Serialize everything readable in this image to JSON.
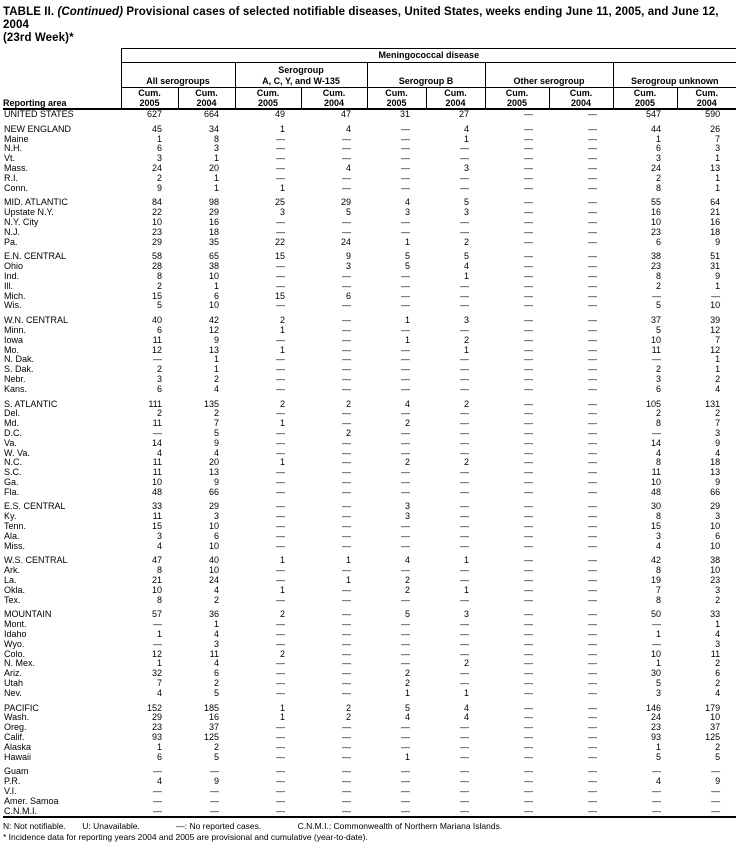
{
  "title": {
    "line1_pre": "TABLE II. ",
    "line1_italic": "(Continued)",
    "line1_post": " Provisional cases of selected notifiable diseases, United States, weeks ending June 11, 2005, and June 12, 2004",
    "line2": "(23rd Week)*"
  },
  "header": {
    "reporting_area": "Reporting area",
    "disease": "Meningococcal disease",
    "groups": [
      {
        "line1": "",
        "line2": "All serogroups"
      },
      {
        "line1": "Serogroup",
        "line2": "A, C, Y, and W-135"
      },
      {
        "line1": "",
        "line2": "Serogroup B"
      },
      {
        "line1": "",
        "line2": "Other serogroup"
      },
      {
        "line1": "",
        "line2": "Serogroup unknown"
      }
    ],
    "sub_label": "Cum.",
    "years": [
      "2005",
      "2004"
    ]
  },
  "table": {
    "sections": [
      {
        "rows": [
          [
            "UNITED STATES",
            "627",
            "664",
            "49",
            "47",
            "31",
            "27",
            "—",
            "—",
            "547",
            "590"
          ]
        ]
      },
      {
        "rows": [
          [
            "NEW ENGLAND",
            "45",
            "34",
            "1",
            "4",
            "—",
            "4",
            "—",
            "—",
            "44",
            "26"
          ],
          [
            "Maine",
            "1",
            "8",
            "—",
            "—",
            "—",
            "1",
            "—",
            "—",
            "1",
            "7"
          ],
          [
            "N.H.",
            "6",
            "3",
            "—",
            "—",
            "—",
            "—",
            "—",
            "—",
            "6",
            "3"
          ],
          [
            "Vt.",
            "3",
            "1",
            "—",
            "—",
            "—",
            "—",
            "—",
            "—",
            "3",
            "1"
          ],
          [
            "Mass.",
            "24",
            "20",
            "—",
            "4",
            "—",
            "3",
            "—",
            "—",
            "24",
            "13"
          ],
          [
            "R.I.",
            "2",
            "1",
            "—",
            "—",
            "—",
            "—",
            "—",
            "—",
            "2",
            "1"
          ],
          [
            "Conn.",
            "9",
            "1",
            "1",
            "—",
            "—",
            "—",
            "—",
            "—",
            "8",
            "1"
          ]
        ]
      },
      {
        "rows": [
          [
            "MID. ATLANTIC",
            "84",
            "98",
            "25",
            "29",
            "4",
            "5",
            "—",
            "—",
            "55",
            "64"
          ],
          [
            "Upstate N.Y.",
            "22",
            "29",
            "3",
            "5",
            "3",
            "3",
            "—",
            "—",
            "16",
            "21"
          ],
          [
            "N.Y. City",
            "10",
            "16",
            "—",
            "—",
            "—",
            "—",
            "—",
            "—",
            "10",
            "16"
          ],
          [
            "N.J.",
            "23",
            "18",
            "—",
            "—",
            "—",
            "—",
            "—",
            "—",
            "23",
            "18"
          ],
          [
            "Pa.",
            "29",
            "35",
            "22",
            "24",
            "1",
            "2",
            "—",
            "—",
            "6",
            "9"
          ]
        ]
      },
      {
        "rows": [
          [
            "E.N. CENTRAL",
            "58",
            "65",
            "15",
            "9",
            "5",
            "5",
            "—",
            "—",
            "38",
            "51"
          ],
          [
            "Ohio",
            "28",
            "38",
            "—",
            "3",
            "5",
            "4",
            "—",
            "—",
            "23",
            "31"
          ],
          [
            "Ind.",
            "8",
            "10",
            "—",
            "—",
            "—",
            "1",
            "—",
            "—",
            "8",
            "9"
          ],
          [
            "Ill.",
            "2",
            "1",
            "—",
            "—",
            "—",
            "—",
            "—",
            "—",
            "2",
            "1"
          ],
          [
            "Mich.",
            "15",
            "6",
            "15",
            "6",
            "—",
            "—",
            "—",
            "—",
            "—",
            "—"
          ],
          [
            "Wis.",
            "5",
            "10",
            "—",
            "—",
            "—",
            "—",
            "—",
            "—",
            "5",
            "10"
          ]
        ]
      },
      {
        "rows": [
          [
            "W.N. CENTRAL",
            "40",
            "42",
            "2",
            "—",
            "1",
            "3",
            "—",
            "—",
            "37",
            "39"
          ],
          [
            "Minn.",
            "6",
            "12",
            "1",
            "—",
            "—",
            "—",
            "—",
            "—",
            "5",
            "12"
          ],
          [
            "Iowa",
            "11",
            "9",
            "—",
            "—",
            "1",
            "2",
            "—",
            "—",
            "10",
            "7"
          ],
          [
            "Mo.",
            "12",
            "13",
            "1",
            "—",
            "—",
            "1",
            "—",
            "—",
            "11",
            "12"
          ],
          [
            "N. Dak.",
            "—",
            "1",
            "—",
            "—",
            "—",
            "—",
            "—",
            "—",
            "—",
            "1"
          ],
          [
            "S. Dak.",
            "2",
            "1",
            "—",
            "—",
            "—",
            "—",
            "—",
            "—",
            "2",
            "1"
          ],
          [
            "Nebr.",
            "3",
            "2",
            "—",
            "—",
            "—",
            "—",
            "—",
            "—",
            "3",
            "2"
          ],
          [
            "Kans.",
            "6",
            "4",
            "—",
            "—",
            "—",
            "—",
            "—",
            "—",
            "6",
            "4"
          ]
        ]
      },
      {
        "rows": [
          [
            "S. ATLANTIC",
            "111",
            "135",
            "2",
            "2",
            "4",
            "2",
            "—",
            "—",
            "105",
            "131"
          ],
          [
            "Del.",
            "2",
            "2",
            "—",
            "—",
            "—",
            "—",
            "—",
            "—",
            "2",
            "2"
          ],
          [
            "Md.",
            "11",
            "7",
            "1",
            "—",
            "2",
            "—",
            "—",
            "—",
            "8",
            "7"
          ],
          [
            "D.C.",
            "—",
            "5",
            "—",
            "2",
            "—",
            "—",
            "—",
            "—",
            "—",
            "3"
          ],
          [
            "Va.",
            "14",
            "9",
            "—",
            "—",
            "—",
            "—",
            "—",
            "—",
            "14",
            "9"
          ],
          [
            "W. Va.",
            "4",
            "4",
            "—",
            "—",
            "—",
            "—",
            "—",
            "—",
            "4",
            "4"
          ],
          [
            "N.C.",
            "11",
            "20",
            "1",
            "—",
            "2",
            "2",
            "—",
            "—",
            "8",
            "18"
          ],
          [
            "S.C.",
            "11",
            "13",
            "—",
            "—",
            "—",
            "—",
            "—",
            "—",
            "11",
            "13"
          ],
          [
            "Ga.",
            "10",
            "9",
            "—",
            "—",
            "—",
            "—",
            "—",
            "—",
            "10",
            "9"
          ],
          [
            "Fla.",
            "48",
            "66",
            "—",
            "—",
            "—",
            "—",
            "—",
            "—",
            "48",
            "66"
          ]
        ]
      },
      {
        "rows": [
          [
            "E.S. CENTRAL",
            "33",
            "29",
            "—",
            "—",
            "3",
            "—",
            "—",
            "—",
            "30",
            "29"
          ],
          [
            "Ky.",
            "11",
            "3",
            "—",
            "—",
            "3",
            "—",
            "—",
            "—",
            "8",
            "3"
          ],
          [
            "Tenn.",
            "15",
            "10",
            "—",
            "—",
            "—",
            "—",
            "—",
            "—",
            "15",
            "10"
          ],
          [
            "Ala.",
            "3",
            "6",
            "—",
            "—",
            "—",
            "—",
            "—",
            "—",
            "3",
            "6"
          ],
          [
            "Miss.",
            "4",
            "10",
            "—",
            "—",
            "—",
            "—",
            "—",
            "—",
            "4",
            "10"
          ]
        ]
      },
      {
        "rows": [
          [
            "W.S. CENTRAL",
            "47",
            "40",
            "1",
            "1",
            "4",
            "1",
            "—",
            "—",
            "42",
            "38"
          ],
          [
            "Ark.",
            "8",
            "10",
            "—",
            "—",
            "—",
            "—",
            "—",
            "—",
            "8",
            "10"
          ],
          [
            "La.",
            "21",
            "24",
            "—",
            "1",
            "2",
            "—",
            "—",
            "—",
            "19",
            "23"
          ],
          [
            "Okla.",
            "10",
            "4",
            "1",
            "—",
            "2",
            "1",
            "—",
            "—",
            "7",
            "3"
          ],
          [
            "Tex.",
            "8",
            "2",
            "—",
            "—",
            "—",
            "—",
            "—",
            "—",
            "8",
            "2"
          ]
        ]
      },
      {
        "rows": [
          [
            "MOUNTAIN",
            "57",
            "36",
            "2",
            "—",
            "5",
            "3",
            "—",
            "—",
            "50",
            "33"
          ],
          [
            "Mont.",
            "—",
            "1",
            "—",
            "—",
            "—",
            "—",
            "—",
            "—",
            "—",
            "1"
          ],
          [
            "Idaho",
            "1",
            "4",
            "—",
            "—",
            "—",
            "—",
            "—",
            "—",
            "1",
            "4"
          ],
          [
            "Wyo.",
            "—",
            "3",
            "—",
            "—",
            "—",
            "—",
            "—",
            "—",
            "—",
            "3"
          ],
          [
            "Colo.",
            "12",
            "11",
            "2",
            "—",
            "—",
            "—",
            "—",
            "—",
            "10",
            "11"
          ],
          [
            "N. Mex.",
            "1",
            "4",
            "—",
            "—",
            "—",
            "2",
            "—",
            "—",
            "1",
            "2"
          ],
          [
            "Ariz.",
            "32",
            "6",
            "—",
            "—",
            "2",
            "—",
            "—",
            "—",
            "30",
            "6"
          ],
          [
            "Utah",
            "7",
            "2",
            "—",
            "—",
            "2",
            "—",
            "—",
            "—",
            "5",
            "2"
          ],
          [
            "Nev.",
            "4",
            "5",
            "—",
            "—",
            "1",
            "1",
            "—",
            "—",
            "3",
            "4"
          ]
        ]
      },
      {
        "rows": [
          [
            "PACIFIC",
            "152",
            "185",
            "1",
            "2",
            "5",
            "4",
            "—",
            "—",
            "146",
            "179"
          ],
          [
            "Wash.",
            "29",
            "16",
            "1",
            "2",
            "4",
            "4",
            "—",
            "—",
            "24",
            "10"
          ],
          [
            "Oreg.",
            "23",
            "37",
            "—",
            "—",
            "—",
            "—",
            "—",
            "—",
            "23",
            "37"
          ],
          [
            "Calif.",
            "93",
            "125",
            "—",
            "—",
            "—",
            "—",
            "—",
            "—",
            "93",
            "125"
          ],
          [
            "Alaska",
            "1",
            "2",
            "—",
            "—",
            "—",
            "—",
            "—",
            "—",
            "1",
            "2"
          ],
          [
            "Hawaii",
            "6",
            "5",
            "—",
            "—",
            "1",
            "—",
            "—",
            "—",
            "5",
            "5"
          ]
        ]
      },
      {
        "rows": [
          [
            "Guam",
            "—",
            "—",
            "—",
            "—",
            "—",
            "—",
            "—",
            "—",
            "—",
            "—"
          ],
          [
            "P.R.",
            "4",
            "9",
            "—",
            "—",
            "—",
            "—",
            "—",
            "—",
            "4",
            "9"
          ],
          [
            "V.I.",
            "—",
            "—",
            "—",
            "—",
            "—",
            "—",
            "—",
            "—",
            "—",
            "—"
          ],
          [
            "Amer. Samoa",
            "—",
            "—",
            "—",
            "—",
            "—",
            "—",
            "—",
            "—",
            "—",
            "—"
          ],
          [
            "C.N.M.I.",
            "—",
            "—",
            "—",
            "—",
            "—",
            "—",
            "—",
            "—",
            "—",
            "—"
          ]
        ]
      }
    ]
  },
  "footnotes": {
    "part1": "N: Not notifiable.",
    "part2": "U: Unavailable.",
    "part3": "—: No reported cases.",
    "part4": "C.N.M.I.: Commonwealth of Northern Mariana Islands.",
    "line2": "* Incidence data for reporting years 2004 and 2005 are provisional and cumulative (year-to-date)."
  }
}
